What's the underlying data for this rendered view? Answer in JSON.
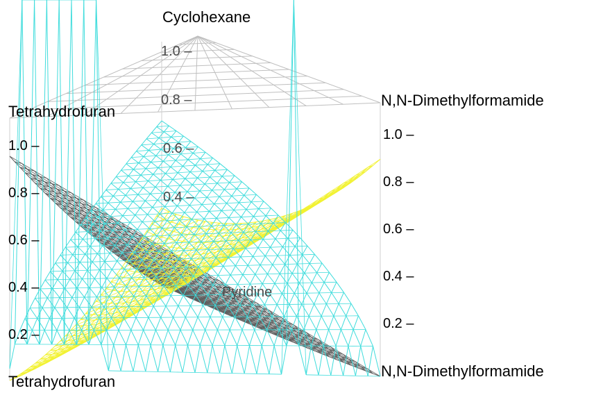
{
  "chart_data": {
    "type": "surface-3d",
    "title": "",
    "vertex_labels": {
      "top": "Cyclohexane",
      "left_upper": "Tetrahydrofuran",
      "right_upper": "N,N-Dimethylformamide",
      "left_lower": "Tetrahydrofuran",
      "right_lower": "N,N-Dimethylformamide",
      "inner": "Pyridine"
    },
    "left_axis_ticks": [
      "1.0 –",
      "0.8 –",
      "0.6 –",
      "0.4 –",
      "0.2 –"
    ],
    "right_axis_ticks": [
      "1.0 –",
      "0.8 –",
      "0.6 –",
      "0.4 –",
      "0.2 –"
    ],
    "center_axis_ticks": [
      "1.0 –",
      "0.8 –",
      "0.6 –",
      "0.4 –"
    ],
    "zlim": [
      0,
      1
    ],
    "surfaces": [
      {
        "color": "#5e5e5e",
        "peak_vertex": "Tetrahydrofuran"
      },
      {
        "color": "#f2f232",
        "peak_vertex": "Cyclohexane"
      },
      {
        "color": "#3fdcdc",
        "peak_vertex": "Pyridine"
      }
    ],
    "grid": true
  }
}
